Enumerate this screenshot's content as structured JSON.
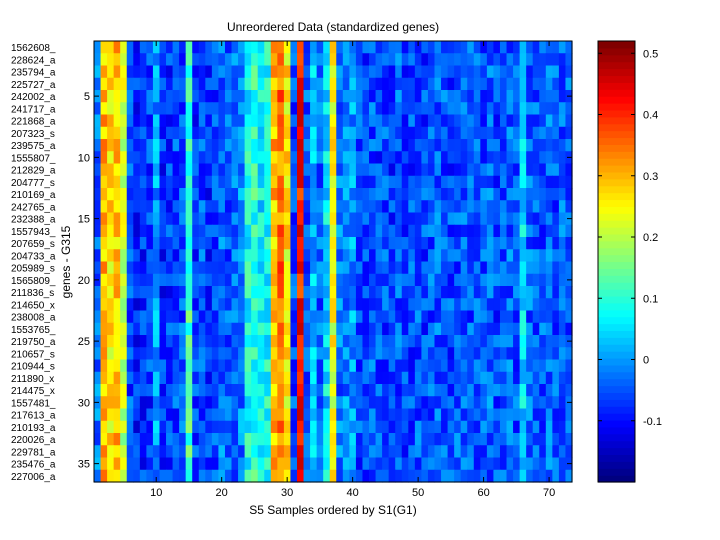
{
  "chart_data": {
    "type": "heatmap",
    "title": "Unreordered Data (standardized genes)",
    "xlabel": "S5 Samples ordered by S1(G1)",
    "ylabel": "genes - G315",
    "x_range": [
      1,
      73
    ],
    "y_range": [
      1,
      36
    ],
    "x_ticks": [
      10,
      20,
      30,
      40,
      50,
      60,
      70
    ],
    "y_ticks": [
      5,
      10,
      15,
      20,
      25,
      30,
      35
    ],
    "row_labels": [
      "1562608_",
      "228624_a",
      "235794_a",
      "225727_a",
      "242002_a",
      "241717_a",
      "221868_a",
      "207323_s",
      "239575_a",
      "1555807_",
      "212829_a",
      "204777_s",
      "210169_a",
      "242765_a",
      "232388_a",
      "1557943_",
      "207659_s",
      "204733_a",
      "205989_s",
      "1565809_",
      "211836_s",
      "214650_x",
      "238008_a",
      "1553765_",
      "219750_a",
      "210657_s",
      "210944_s",
      "211890_x",
      "214475_x",
      "1557481_",
      "217613_a",
      "210193_a",
      "220026_a",
      "229781_a",
      "235476_a",
      "227006_a"
    ],
    "column_profile": [
      -0.03,
      0.3,
      0.26,
      0.29,
      0.21,
      -0.06,
      -0.09,
      -0.08,
      -0.07,
      0.0,
      -0.08,
      -0.07,
      -0.06,
      -0.05,
      0.12,
      -0.07,
      -0.05,
      -0.08,
      -0.06,
      -0.03,
      -0.05,
      -0.04,
      -0.02,
      0.08,
      0.1,
      0.06,
      0.08,
      0.3,
      0.35,
      0.26,
      -0.06,
      0.42,
      -0.05,
      0.02,
      -0.04,
      0.05,
      0.24,
      -0.03,
      -0.02,
      0.0,
      -0.06,
      -0.06,
      -0.05,
      -0.06,
      -0.06,
      -0.07,
      -0.05,
      -0.06,
      -0.06,
      -0.05,
      -0.06,
      -0.05,
      -0.04,
      -0.05,
      -0.06,
      -0.05,
      -0.04,
      -0.05,
      -0.05,
      -0.05,
      -0.04,
      -0.06,
      -0.05,
      -0.04,
      -0.05,
      0.05,
      -0.04,
      -0.05,
      -0.05,
      -0.04,
      -0.05,
      -0.04,
      -0.05
    ],
    "value_range": [
      -0.2,
      0.52
    ],
    "colorbar_ticks": [
      -0.1,
      0,
      0.1,
      0.2,
      0.3,
      0.4,
      0.5
    ],
    "colormap": "jet"
  }
}
